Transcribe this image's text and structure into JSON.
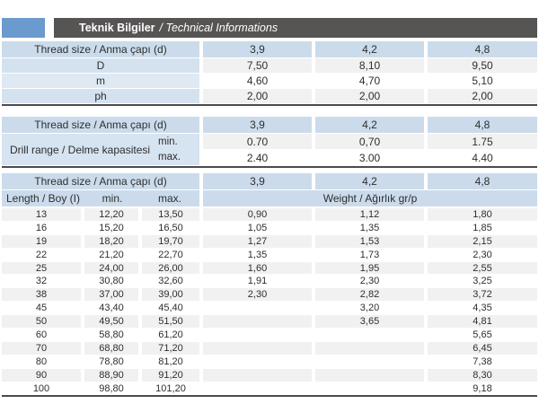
{
  "header": {
    "title_tr": "Teknik Bilgiler",
    "title_en": "/ Technical Informations"
  },
  "thread_header": {
    "label": "Thread size / Anma çapı (d)",
    "sizes": [
      "3,9",
      "4,2",
      "4,8"
    ]
  },
  "table1": {
    "rows": [
      {
        "label": "D",
        "values": [
          "7,50",
          "8,10",
          "9,50"
        ]
      },
      {
        "label": "m",
        "values": [
          "4,60",
          "4,70",
          "5,10"
        ]
      },
      {
        "label": "ph",
        "values": [
          "2,00",
          "2,00",
          "2,00"
        ]
      }
    ]
  },
  "table2": {
    "label": "Drill range / Delme kapasitesi",
    "rows": [
      {
        "label": "min.",
        "values": [
          "0.70",
          "0,70",
          "1.75"
        ]
      },
      {
        "label": "max.",
        "values": [
          "2.40",
          "3.00",
          "4.40"
        ]
      }
    ]
  },
  "table3": {
    "length_label": "Length / Boy (I)",
    "min_label": "min.",
    "max_label": "max.",
    "weight_label": "Weight / Ağırlık gr/p",
    "rows": [
      {
        "length": "13",
        "min": "12,20",
        "max": "13,50",
        "weights": [
          "0,90",
          "1,12",
          "1,80"
        ]
      },
      {
        "length": "16",
        "min": "15,20",
        "max": "16,50",
        "weights": [
          "1,05",
          "1,35",
          "1,85"
        ]
      },
      {
        "length": "19",
        "min": "18,20",
        "max": "19,70",
        "weights": [
          "1,27",
          "1,53",
          "2,15"
        ]
      },
      {
        "length": "22",
        "min": "21,20",
        "max": "22,70",
        "weights": [
          "1,35",
          "1,73",
          "2,30"
        ]
      },
      {
        "length": "25",
        "min": "24,00",
        "max": "26,00",
        "weights": [
          "1,60",
          "1,95",
          "2,55"
        ]
      },
      {
        "length": "32",
        "min": "30,80",
        "max": "32,60",
        "weights": [
          "1,91",
          "2,30",
          "3,25"
        ]
      },
      {
        "length": "38",
        "min": "37,00",
        "max": "39,00",
        "weights": [
          "2,30",
          "2,82",
          "3,72"
        ]
      },
      {
        "length": "45",
        "min": "43,40",
        "max": "45,40",
        "weights": [
          "",
          "3,20",
          "4,35"
        ]
      },
      {
        "length": "50",
        "min": "49,50",
        "max": "51,50",
        "weights": [
          "",
          "3,65",
          "4,81"
        ]
      },
      {
        "length": "60",
        "min": "58,80",
        "max": "61,20",
        "weights": [
          "",
          "",
          "5,65"
        ]
      },
      {
        "length": "70",
        "min": "68,80",
        "max": "71,20",
        "weights": [
          "",
          "",
          "6,45"
        ]
      },
      {
        "length": "80",
        "min": "78,80",
        "max": "81,20",
        "weights": [
          "",
          "",
          "7,38"
        ]
      },
      {
        "length": "90",
        "min": "88,90",
        "max": "91,20",
        "weights": [
          "",
          "",
          "8,30"
        ]
      },
      {
        "length": "100",
        "min": "98,80",
        "max": "101,20",
        "weights": [
          "",
          "",
          "9,18"
        ]
      }
    ]
  },
  "colors": {
    "accent_blue": "#6b9ace",
    "bar_gray": "#575454",
    "header_cell_blue": "#cbdbeb",
    "label_cell_blue": "#d4e2f0",
    "label_cell_blue_light": "#dee9f4",
    "row_gray": "#f1f1f1",
    "border_dark": "#4c4a4a"
  }
}
